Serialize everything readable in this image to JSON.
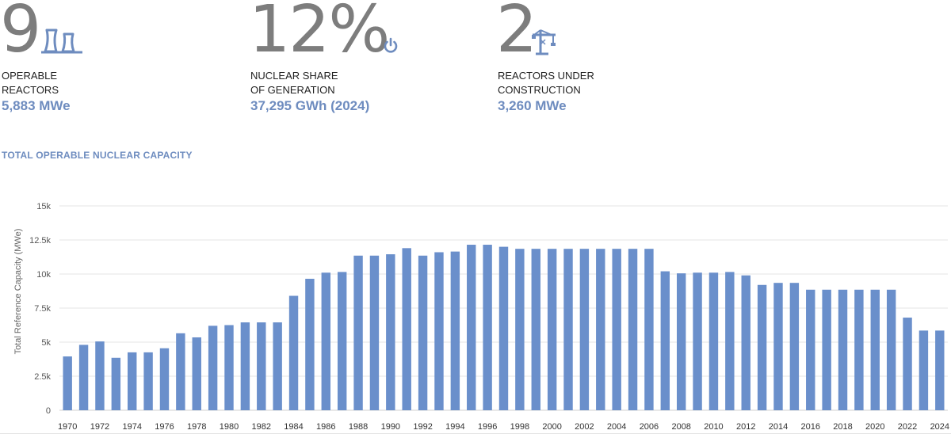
{
  "stats": [
    {
      "number": "9",
      "label_line1": "OPERABLE",
      "label_line2": "REACTORS",
      "value": "5,883 MWe",
      "icon": "cooling-tower-icon"
    },
    {
      "number": "12%",
      "label_line1": "NUCLEAR SHARE",
      "label_line2": "OF GENERATION",
      "value": "37,295 GWh (2024)",
      "icon": "power-icon"
    },
    {
      "number": "2",
      "label_line1": "REACTORS UNDER",
      "label_line2": "CONSTRUCTION",
      "value": "3,260 MWe",
      "icon": "crane-icon"
    }
  ],
  "section_title": "TOTAL OPERABLE NUCLEAR CAPACITY",
  "colors": {
    "accent": "#6e8cbf",
    "bar": "#6a8fcb",
    "number": "#7d7d7d"
  },
  "chart_data": {
    "type": "bar",
    "title": "",
    "xlabel": "",
    "ylabel": "Total Reference Capacity (MWe)",
    "ylim": [
      0,
      15000
    ],
    "y_ticks": [
      0,
      2500,
      5000,
      7500,
      10000,
      12500,
      15000
    ],
    "y_tick_labels": [
      "0",
      "2.5k",
      "5k",
      "7.5k",
      "10k",
      "12.5k",
      "15k"
    ],
    "grid": true,
    "categories": [
      "1970",
      "1971",
      "1972",
      "1973",
      "1974",
      "1975",
      "1976",
      "1977",
      "1978",
      "1979",
      "1980",
      "1981",
      "1982",
      "1983",
      "1984",
      "1985",
      "1986",
      "1987",
      "1988",
      "1989",
      "1990",
      "1991",
      "1992",
      "1993",
      "1994",
      "1995",
      "1996",
      "1997",
      "1998",
      "1999",
      "2000",
      "2001",
      "2002",
      "2003",
      "2004",
      "2005",
      "2006",
      "2007",
      "2008",
      "2009",
      "2010",
      "2011",
      "2012",
      "2013",
      "2014",
      "2015",
      "2016",
      "2017",
      "2018",
      "2019",
      "2020",
      "2021",
      "2022",
      "2023",
      "2024"
    ],
    "x_tick_labels": [
      "1970",
      "1972",
      "1974",
      "1976",
      "1978",
      "1980",
      "1982",
      "1984",
      "1986",
      "1988",
      "1990",
      "1992",
      "1994",
      "1996",
      "1998",
      "2000",
      "2002",
      "2004",
      "2006",
      "2008",
      "2010",
      "2012",
      "2014",
      "2016",
      "2018",
      "2020",
      "2022",
      "2024"
    ],
    "values": [
      3950,
      4800,
      5050,
      3850,
      4250,
      4250,
      4550,
      5650,
      5350,
      6200,
      6250,
      6450,
      6450,
      6450,
      8400,
      9650,
      10100,
      10150,
      11350,
      11350,
      11450,
      11900,
      11350,
      11600,
      11650,
      12150,
      12150,
      12000,
      11850,
      11850,
      11850,
      11850,
      11850,
      11850,
      11850,
      11850,
      11850,
      10200,
      10050,
      10100,
      10100,
      10150,
      9900,
      9200,
      9350,
      9350,
      8850,
      8850,
      8850,
      8850,
      8850,
      8850,
      6800,
      5850,
      5850
    ]
  }
}
